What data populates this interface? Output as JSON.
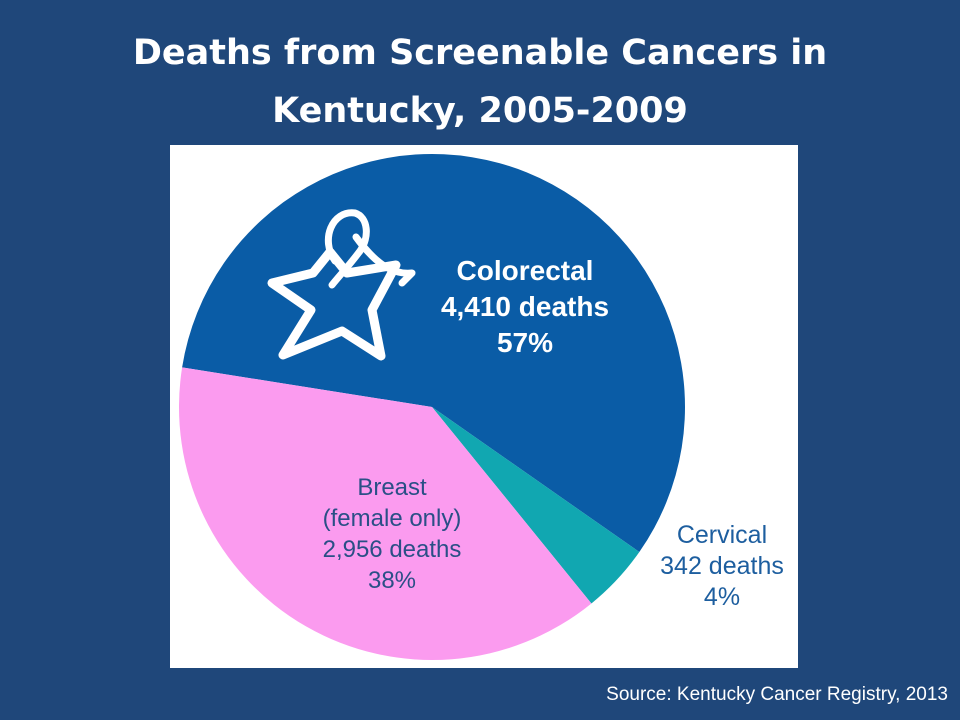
{
  "slide": {
    "title_line1": "Deaths from Screenable Cancers in",
    "title_line2": "Kentucky, 2005-2009",
    "source": "Source:  Kentucky Cancer Registry, 2013"
  },
  "colors": {
    "background": "#1f477a",
    "colorectal": "#0a5ca6",
    "breast": "#fb9bef",
    "cervical": "#11a7b1",
    "cervical_label": "#1d5e9f",
    "colorectal_label": "#ffffff",
    "breast_label": "#2a4f86"
  },
  "logo": {
    "icon": "ribbon-star-icon"
  },
  "chart_data": {
    "type": "pie",
    "title": "Deaths from Screenable Cancers in Kentucky, 2005-2009",
    "slices": [
      {
        "name": "Colorectal",
        "detail": "",
        "value": 4410,
        "value_label": "4,410 deaths",
        "percent_label": "57%"
      },
      {
        "name": "Cervical",
        "detail": "",
        "value": 342,
        "value_label": "342 deaths",
        "percent_label": "4%"
      },
      {
        "name": "Breast",
        "detail": "(female only)",
        "value": 2956,
        "value_label": "2,956 deaths",
        "percent_label": "38%"
      }
    ]
  }
}
